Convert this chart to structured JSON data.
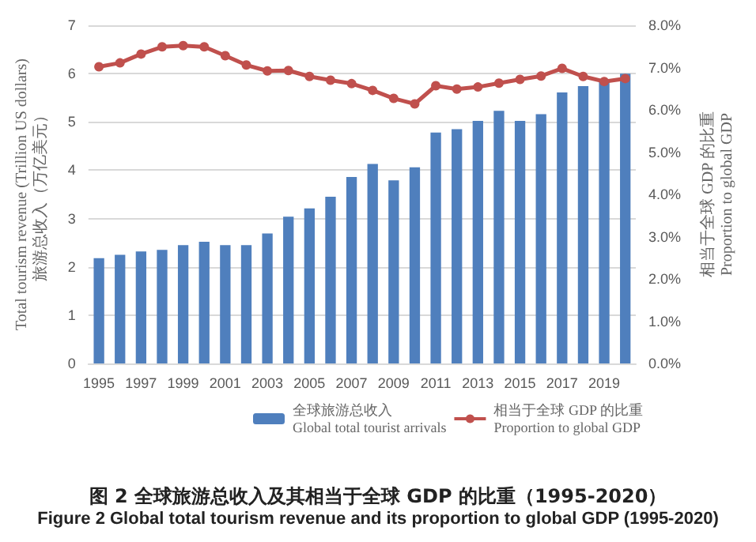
{
  "chart_data": {
    "type": "bar",
    "title": "图 2 全球旅游总收入及其相当于全球 GDP 的比重（1995-2020）",
    "subtitle": "Figure 2 Global total tourism revenue and its proportion to global GDP (1995-2020)",
    "ylabel": "Total tourism revenue (Trillion US dollars)\n旅游总收入（万亿美元）",
    "y2label": "相当于全球 GDP 的比重\nProportion to global GDP",
    "categories": [
      "1995",
      null,
      "1997",
      null,
      "1999",
      null,
      "2001",
      null,
      "2003",
      null,
      "2005",
      null,
      "2007",
      null,
      "2009",
      null,
      "2011",
      null,
      "2013",
      null,
      "2015",
      null,
      "2017",
      null,
      "2019",
      null
    ],
    "series": [
      {
        "name": "全球旅游总收入\nGlobal total tourist arrivals",
        "color": "#4f7fbd",
        "values": [
          2.18,
          2.25,
          2.32,
          2.35,
          2.45,
          2.52,
          2.45,
          2.45,
          2.69,
          3.04,
          3.21,
          3.45,
          3.86,
          4.13,
          3.79,
          4.06,
          4.78,
          4.85,
          5.02,
          5.23,
          5.02,
          5.16,
          5.61,
          5.74,
          5.83,
          6.0
        ]
      },
      {
        "name": "相当于全球 GDP 的比重\nProportion to global GDP",
        "type": "line",
        "axis": "y2",
        "color": "#c0504d",
        "marker": "circle",
        "line_style": "solid",
        "values": [
          7.02,
          7.11,
          7.32,
          7.49,
          7.52,
          7.49,
          7.28,
          7.06,
          6.92,
          6.93,
          6.79,
          6.7,
          6.62,
          6.46,
          6.27,
          6.14,
          6.57,
          6.49,
          6.54,
          6.63,
          6.72,
          6.8,
          6.98,
          6.79,
          6.67,
          6.74
        ]
      }
    ],
    "ylim": [
      0,
      7
    ],
    "yticks": [
      0,
      1,
      2,
      3,
      4,
      5,
      6,
      7
    ],
    "y2lim": [
      0,
      8
    ],
    "y2ticks": [
      {
        "value": 0,
        "label": "0.0%"
      },
      {
        "value": 1,
        "label": "1.0%"
      },
      {
        "value": 2,
        "label": "2.0%"
      },
      {
        "value": 3,
        "label": "3.0%"
      },
      {
        "value": 4,
        "label": "4.0%"
      },
      {
        "value": 5,
        "label": "5.0%"
      },
      {
        "value": 6,
        "label": "6.0%"
      },
      {
        "value": 7,
        "label": "7.0%"
      },
      {
        "value": 8,
        "label": "8.0%"
      }
    ],
    "grid": "y",
    "legend": "bottom"
  }
}
